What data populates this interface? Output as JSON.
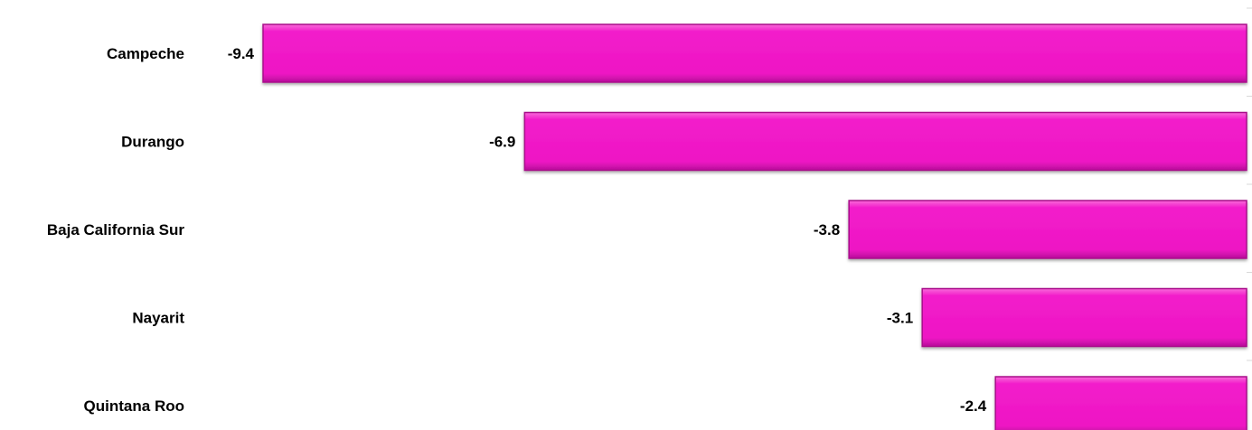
{
  "chart_data": {
    "type": "bar",
    "orientation": "horizontal",
    "categories": [
      "Campeche",
      "Durango",
      "Baja California Sur",
      "Nayarit",
      "Quintana Roo"
    ],
    "values": [
      -9.4,
      -6.9,
      -3.8,
      -3.1,
      -2.4
    ],
    "value_labels": [
      "-9.4",
      "-6.9",
      "-3.8",
      "-3.1",
      "-2.4"
    ],
    "xlim": [
      -9.4,
      0
    ],
    "bar_color": "#f01bc8",
    "bar_edge_color": "#a8108a",
    "grid": false,
    "legend": "none",
    "title": "",
    "xlabel": "",
    "ylabel": ""
  }
}
